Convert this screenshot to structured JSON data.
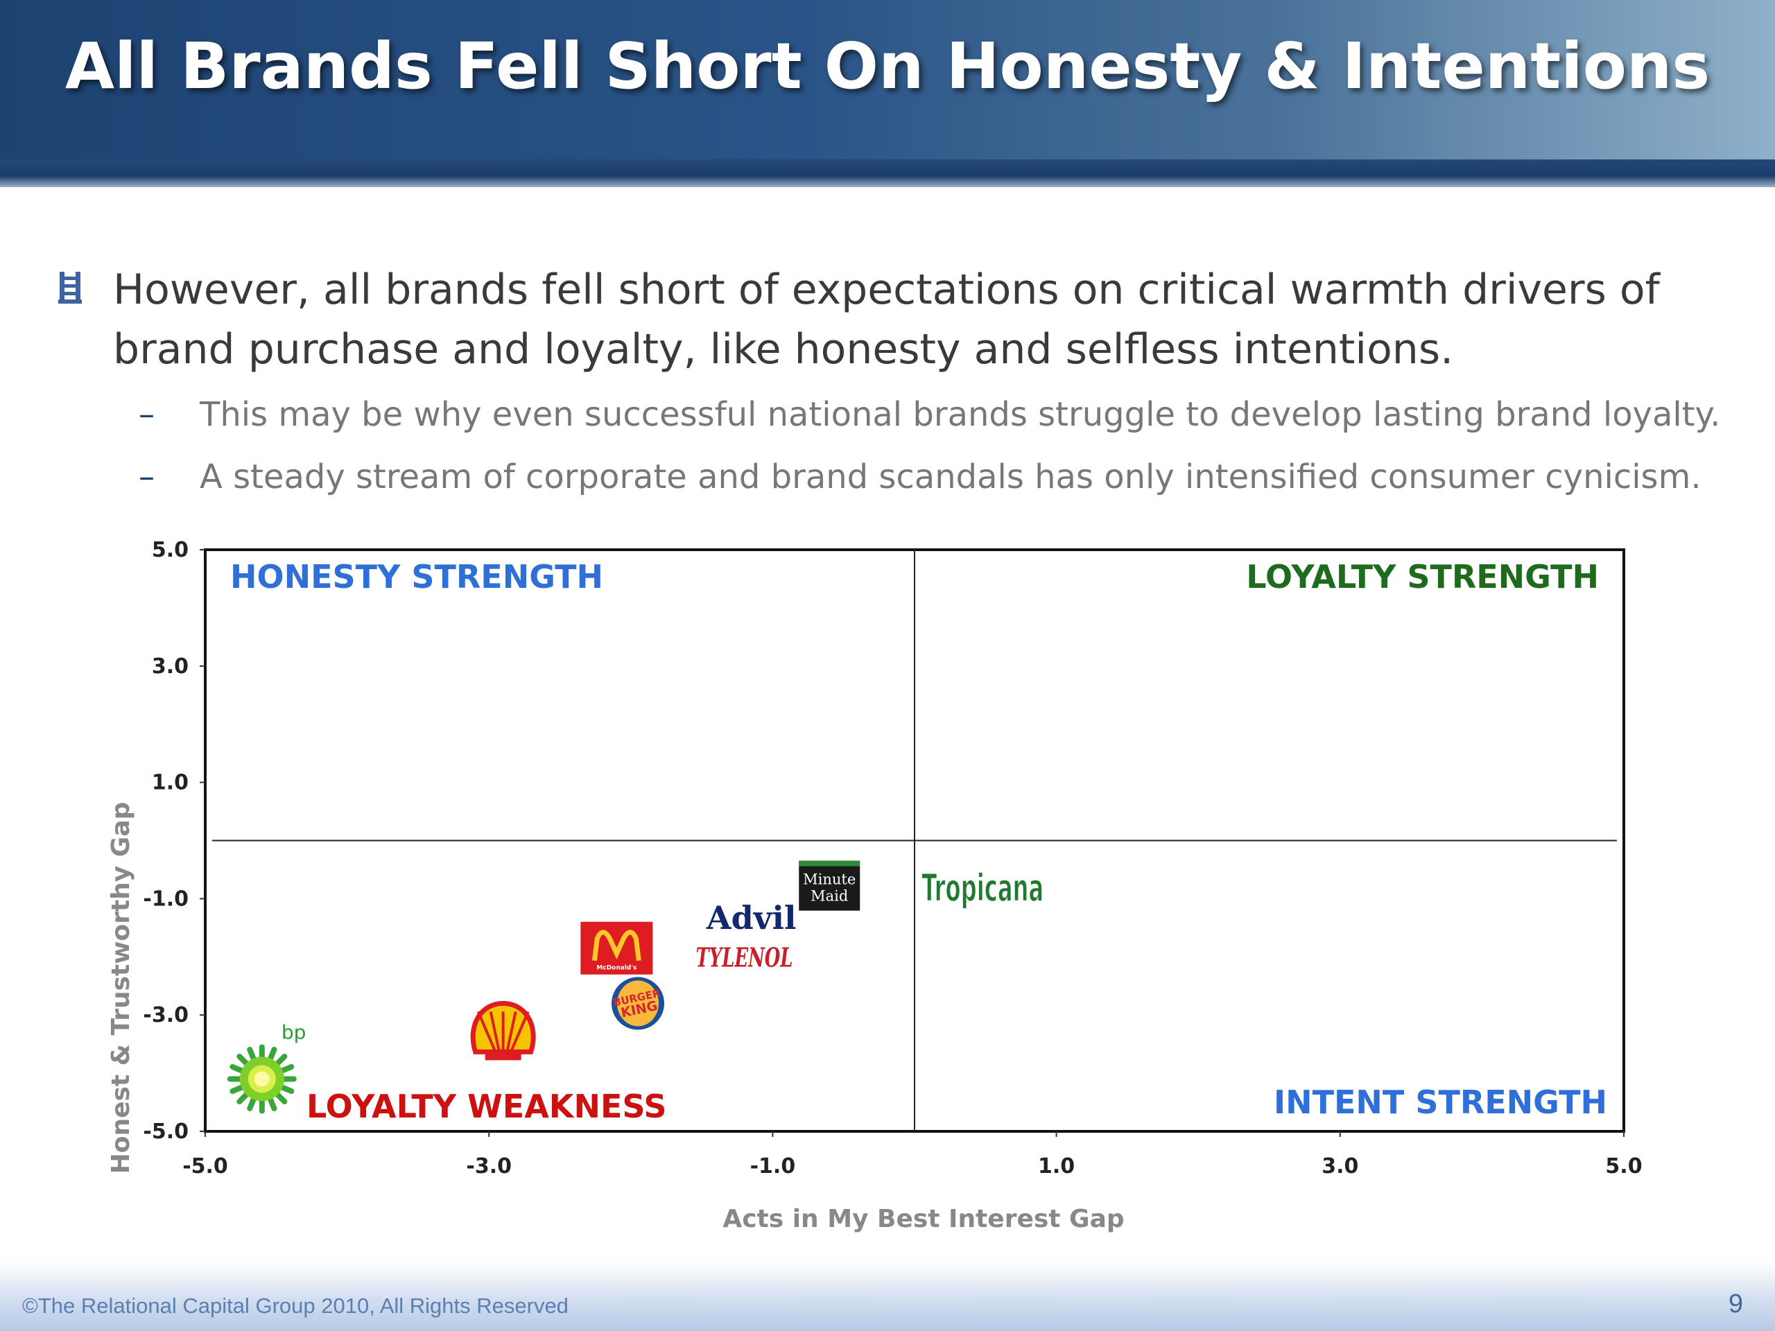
{
  "slide": {
    "title": "All Brands Fell Short On Honesty & Intentions",
    "bullet_icon": "ladder-icon",
    "bullet": "However, all brands fell short of expectations on critical warmth drivers of brand purchase and loyalty, like honesty and selfless intentions.",
    "sub_bullets": [
      "This may be why even successful national brands struggle to develop lasting brand loyalty.",
      "A steady stream of corporate and brand scandals has only intensified consumer cynicism."
    ],
    "footer": "©The Relational Capital Group 2010, All Rights Reserved",
    "page_number": "9"
  },
  "chart_data": {
    "type": "scatter",
    "title": "",
    "xlabel": "Acts in My Best Interest Gap",
    "ylabel": "Honest & Trustworthy Gap",
    "xlim": [
      -5.0,
      5.0
    ],
    "ylim": [
      -5.0,
      5.0
    ],
    "xticks": [
      "-5.0",
      "-3.0",
      "-1.0",
      "1.0",
      "3.0",
      "5.0"
    ],
    "yticks": [
      "5.0",
      "3.0",
      "1.0",
      "-1.0",
      "-3.0",
      "-5.0"
    ],
    "grid": false,
    "quadrant_labels": {
      "top_left": "HONESTY STRENGTH",
      "top_right": "LOYALTY STRENGTH",
      "bottom_left": "LOYALTY WEAKNESS",
      "bottom_right": "INTENT STRENGTH"
    },
    "colors": {
      "honesty": "#2e6fd8",
      "loyalty_strength": "#1e6b1e",
      "weakness": "#cc1111",
      "intent": "#2e6fd8"
    },
    "points": [
      {
        "brand": "bp",
        "x": -4.6,
        "y": -4.1,
        "logo_text": "bp"
      },
      {
        "brand": "Shell",
        "x": -2.9,
        "y": -3.3
      },
      {
        "brand": "McDonald's",
        "x": -2.1,
        "y": -1.85,
        "logo_text": "McDonald's"
      },
      {
        "brand": "Burger King",
        "x": -1.95,
        "y": -2.8,
        "logo_text": "BURGER KING"
      },
      {
        "brand": "Advil",
        "x": -1.15,
        "y": -1.35,
        "logo_text": "Advil"
      },
      {
        "brand": "Tylenol",
        "x": -1.2,
        "y": -2.0,
        "logo_text": "TYLENOL"
      },
      {
        "brand": "Minute Maid",
        "x": -0.6,
        "y": -0.8,
        "logo_text": [
          "Minute",
          "Maid"
        ]
      },
      {
        "brand": "Tropicana",
        "x": 0.05,
        "y": -0.8,
        "logo_text": "Tropicana"
      }
    ]
  }
}
